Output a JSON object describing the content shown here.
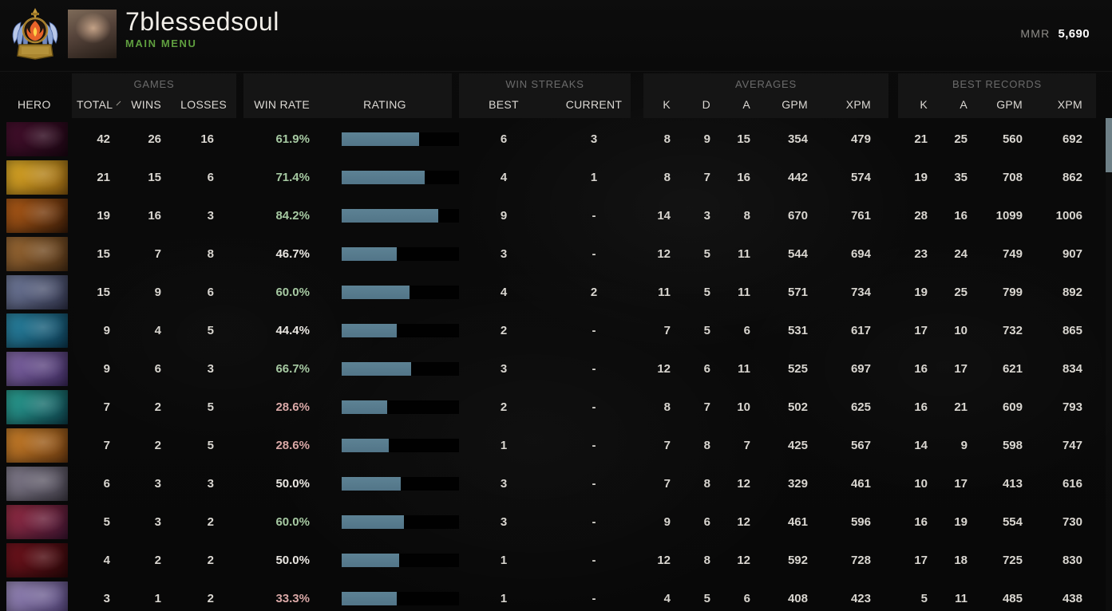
{
  "header": {
    "player_name": "7blessedsoul",
    "menu_label": "MAIN MENU",
    "mmr_label": "MMR",
    "mmr_value": "5,690"
  },
  "colors": {
    "accent_green": "#5f9e3f",
    "bar_fill": "#567b8e",
    "win_green": "#a6c9a2",
    "win_neutral": "#e9e6e1",
    "win_low": "#d9a8a6"
  },
  "table": {
    "groups": {
      "games": "GAMES",
      "win_streaks": "WIN STREAKS",
      "averages": "AVERAGES",
      "best_records": "BEST RECORDS"
    },
    "columns": {
      "hero": "HERO",
      "total": "TOTAL",
      "wins": "WINS",
      "losses": "LOSSES",
      "win_rate": "WIN RATE",
      "rating": "RATING",
      "best": "BEST",
      "current": "CURRENT",
      "k": "K",
      "d": "D",
      "a": "A",
      "gpm": "GPM",
      "xpm": "XPM",
      "rk": "K",
      "ra": "A",
      "rgpm": "GPM",
      "rxpm": "XPM"
    }
  },
  "rows": [
    {
      "total": 42,
      "wins": 26,
      "losses": 16,
      "win_rate": "61.9%",
      "win_tone": "green",
      "rating_pct": 66,
      "best": "6",
      "current": "3",
      "k": 8,
      "d": 9,
      "a": 15,
      "gpm": 354,
      "xpm": 479,
      "rk": 21,
      "ra": 25,
      "rgpm": 560,
      "rxpm": 692,
      "icon": {
        "c1": "#4a1030",
        "c2": "#1a0612"
      }
    },
    {
      "total": 21,
      "wins": 15,
      "losses": 6,
      "win_rate": "71.4%",
      "win_tone": "green",
      "rating_pct": 71,
      "best": "4",
      "current": "1",
      "k": 8,
      "d": 7,
      "a": 16,
      "gpm": 442,
      "xpm": 574,
      "rk": 19,
      "ra": 35,
      "rgpm": 708,
      "rxpm": 862,
      "icon": {
        "c1": "#e7b42a",
        "c2": "#8a5b10"
      }
    },
    {
      "total": 19,
      "wins": 16,
      "losses": 3,
      "win_rate": "84.2%",
      "win_tone": "green",
      "rating_pct": 82,
      "best": "9",
      "current": "-",
      "k": 14,
      "d": 3,
      "a": 8,
      "gpm": 670,
      "xpm": 761,
      "rk": 28,
      "ra": 16,
      "rgpm": 1099,
      "rxpm": 1006,
      "icon": {
        "c1": "#c2651a",
        "c2": "#3a1c08"
      }
    },
    {
      "total": 15,
      "wins": 7,
      "losses": 8,
      "win_rate": "46.7%",
      "win_tone": "neutral",
      "rating_pct": 47,
      "best": "3",
      "current": "-",
      "k": 12,
      "d": 5,
      "a": 11,
      "gpm": 544,
      "xpm": 694,
      "rk": 23,
      "ra": 24,
      "rgpm": 749,
      "rxpm": 907,
      "icon": {
        "c1": "#a8733a",
        "c2": "#4a2e14"
      }
    },
    {
      "total": 15,
      "wins": 9,
      "losses": 6,
      "win_rate": "60.0%",
      "win_tone": "green",
      "rating_pct": 58,
      "best": "4",
      "current": "2",
      "k": 11,
      "d": 5,
      "a": 11,
      "gpm": 571,
      "xpm": 734,
      "rk": 19,
      "ra": 25,
      "rgpm": 799,
      "rxpm": 892,
      "icon": {
        "c1": "#7b86a8",
        "c2": "#2e3148"
      }
    },
    {
      "total": 9,
      "wins": 4,
      "losses": 5,
      "win_rate": "44.4%",
      "win_tone": "neutral",
      "rating_pct": 47,
      "best": "2",
      "current": "-",
      "k": 7,
      "d": 5,
      "a": 6,
      "gpm": 531,
      "xpm": 617,
      "rk": 17,
      "ra": 10,
      "rgpm": 732,
      "rxpm": 865,
      "icon": {
        "c1": "#2e8fae",
        "c2": "#0c3a52"
      }
    },
    {
      "total": 9,
      "wins": 6,
      "losses": 3,
      "win_rate": "66.7%",
      "win_tone": "green",
      "rating_pct": 59,
      "best": "3",
      "current": "-",
      "k": 12,
      "d": 6,
      "a": 11,
      "gpm": 525,
      "xpm": 697,
      "rk": 16,
      "ra": 17,
      "rgpm": 621,
      "rxpm": 834,
      "icon": {
        "c1": "#8a6fb0",
        "c2": "#3d2a5e"
      }
    },
    {
      "total": 7,
      "wins": 2,
      "losses": 5,
      "win_rate": "28.6%",
      "win_tone": "low",
      "rating_pct": 39,
      "best": "2",
      "current": "-",
      "k": 8,
      "d": 7,
      "a": 10,
      "gpm": 502,
      "xpm": 625,
      "rk": 16,
      "ra": 21,
      "rgpm": 609,
      "rxpm": 793,
      "icon": {
        "c1": "#2fae9e",
        "c2": "#0d3f4a"
      }
    },
    {
      "total": 7,
      "wins": 2,
      "losses": 5,
      "win_rate": "28.6%",
      "win_tone": "low",
      "rating_pct": 40,
      "best": "1",
      "current": "-",
      "k": 7,
      "d": 8,
      "a": 7,
      "gpm": 425,
      "xpm": 567,
      "rk": 14,
      "ra": 9,
      "rgpm": 598,
      "rxpm": 747,
      "icon": {
        "c1": "#d98a2e",
        "c2": "#6b3a10"
      }
    },
    {
      "total": 6,
      "wins": 3,
      "losses": 3,
      "win_rate": "50.0%",
      "win_tone": "neutral",
      "rating_pct": 50,
      "best": "3",
      "current": "-",
      "k": 7,
      "d": 8,
      "a": 12,
      "gpm": 329,
      "xpm": 461,
      "rk": 10,
      "ra": 17,
      "rgpm": 413,
      "rxpm": 616,
      "icon": {
        "c1": "#8d8798",
        "c2": "#3f3b46"
      }
    },
    {
      "total": 5,
      "wins": 3,
      "losses": 2,
      "win_rate": "60.0%",
      "win_tone": "green",
      "rating_pct": 53,
      "best": "3",
      "current": "-",
      "k": 9,
      "d": 6,
      "a": 12,
      "gpm": 461,
      "xpm": 596,
      "rk": 16,
      "ra": 19,
      "rgpm": 554,
      "rxpm": 730,
      "icon": {
        "c1": "#a03048",
        "c2": "#3c1430"
      }
    },
    {
      "total": 4,
      "wins": 2,
      "losses": 2,
      "win_rate": "50.0%",
      "win_tone": "neutral",
      "rating_pct": 49,
      "best": "1",
      "current": "-",
      "k": 12,
      "d": 8,
      "a": 12,
      "gpm": 592,
      "xpm": 728,
      "rk": 17,
      "ra": 18,
      "rgpm": 725,
      "rxpm": 830,
      "icon": {
        "c1": "#7a1520",
        "c2": "#2a0708"
      }
    },
    {
      "total": 3,
      "wins": 1,
      "losses": 2,
      "win_rate": "33.3%",
      "win_tone": "low",
      "rating_pct": 47,
      "best": "1",
      "current": "-",
      "k": 4,
      "d": 5,
      "a": 6,
      "gpm": 408,
      "xpm": 423,
      "rk": 5,
      "ra": 11,
      "rgpm": 485,
      "rxpm": 438,
      "icon": {
        "c1": "#a393c4",
        "c2": "#4a3c6e"
      }
    }
  ]
}
